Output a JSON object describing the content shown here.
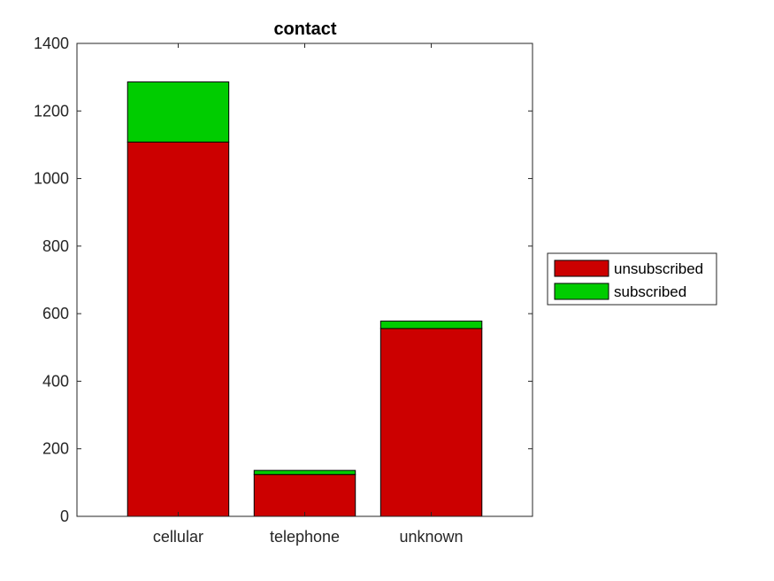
{
  "chart_data": {
    "type": "bar",
    "stacked": true,
    "title": "contact",
    "xlabel": "",
    "ylabel": "",
    "categories": [
      "cellular",
      "telephone",
      "unknown"
    ],
    "series": [
      {
        "name": "unsubscribed",
        "color": "#cc0000",
        "values": [
          1108,
          124,
          556
        ]
      },
      {
        "name": "subscribed",
        "color": "#00cc00",
        "values": [
          178,
          12,
          22
        ]
      }
    ],
    "ylim": [
      0,
      1400
    ],
    "yticks": [
      0,
      200,
      400,
      600,
      800,
      1000,
      1200,
      1400
    ],
    "grid": false,
    "legend_position": "right"
  }
}
